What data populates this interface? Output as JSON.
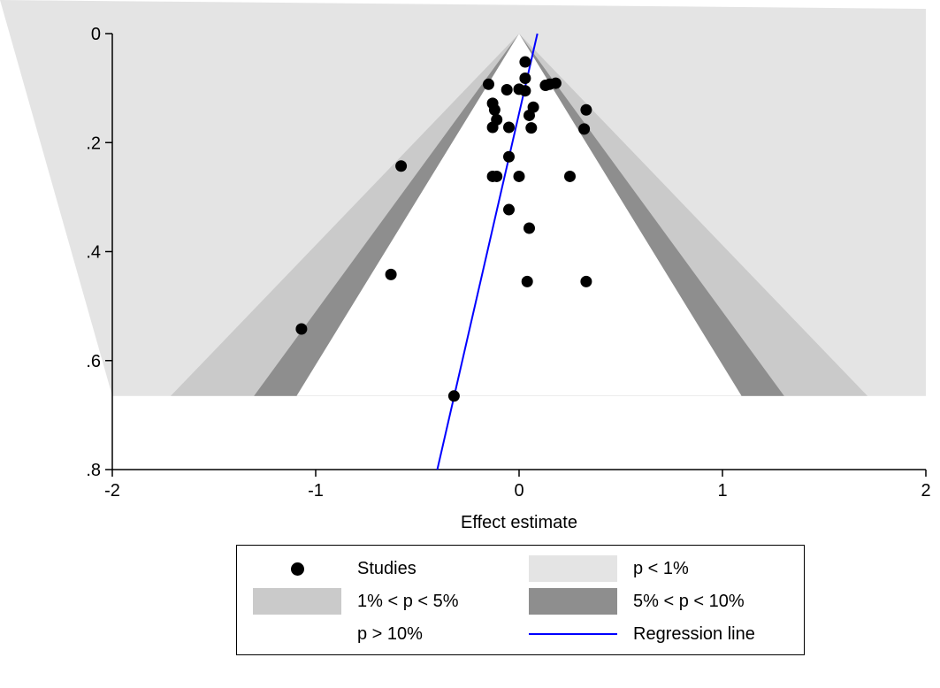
{
  "chart_data": {
    "type": "scatter",
    "subtype": "contour-enhanced funnel plot",
    "xlabel": "Effect estimate",
    "ylabel": "",
    "xlim": [
      -2,
      2
    ],
    "ylim": [
      0,
      0.8
    ],
    "y_reversed": true,
    "x_ticks": [
      "-2",
      "-1",
      "0",
      "1",
      "2"
    ],
    "y_ticks": [
      "0",
      ".2",
      ".4",
      ".6",
      ".8"
    ],
    "grid": false,
    "legend_position": "bottom",
    "contour_max_se": 0.665,
    "series": [
      {
        "name": "Studies",
        "kind": "points",
        "color": "#000000",
        "points": [
          {
            "x": 0.03,
            "y": 0.052
          },
          {
            "x": 0.03,
            "y": 0.082
          },
          {
            "x": -0.15,
            "y": 0.093
          },
          {
            "x": 0.15,
            "y": 0.093
          },
          {
            "x": 0.18,
            "y": 0.091
          },
          {
            "x": 0.13,
            "y": 0.095
          },
          {
            "x": -0.06,
            "y": 0.103
          },
          {
            "x": 0.0,
            "y": 0.102
          },
          {
            "x": 0.03,
            "y": 0.105
          },
          {
            "x": -0.13,
            "y": 0.128
          },
          {
            "x": -0.12,
            "y": 0.14
          },
          {
            "x": 0.07,
            "y": 0.135
          },
          {
            "x": 0.33,
            "y": 0.14
          },
          {
            "x": -0.11,
            "y": 0.158
          },
          {
            "x": 0.05,
            "y": 0.15
          },
          {
            "x": -0.13,
            "y": 0.172
          },
          {
            "x": -0.05,
            "y": 0.172
          },
          {
            "x": 0.06,
            "y": 0.173
          },
          {
            "x": 0.32,
            "y": 0.175
          },
          {
            "x": -0.05,
            "y": 0.226
          },
          {
            "x": -0.58,
            "y": 0.243
          },
          {
            "x": -0.13,
            "y": 0.262
          },
          {
            "x": -0.11,
            "y": 0.262
          },
          {
            "x": 0.0,
            "y": 0.262
          },
          {
            "x": 0.25,
            "y": 0.262
          },
          {
            "x": -0.05,
            "y": 0.323
          },
          {
            "x": 0.05,
            "y": 0.357
          },
          {
            "x": -0.63,
            "y": 0.442
          },
          {
            "x": 0.04,
            "y": 0.455
          },
          {
            "x": 0.33,
            "y": 0.455
          },
          {
            "x": -1.07,
            "y": 0.542
          },
          {
            "x": -0.32,
            "y": 0.665
          }
        ]
      },
      {
        "name": "Regression line",
        "kind": "line",
        "color": "#0000ff",
        "x_at_se0": 0.09,
        "slope_x_per_se": -0.615
      }
    ],
    "contours": [
      {
        "name": "p < 1%",
        "color": "#e4e4e4",
        "z": 2.576
      },
      {
        "name": "1% < p < 5%",
        "color": "#cacaca",
        "z": 1.96
      },
      {
        "name": "5% < p < 10%",
        "color": "#8e8e8e",
        "z": 1.645
      },
      {
        "name": "p > 10%",
        "color": "#ffffff",
        "z": 0
      }
    ]
  },
  "legend": {
    "studies": "Studies",
    "p1": "p < 1%",
    "p1_5": "1% < p < 5%",
    "p5_10": "5% < p < 10%",
    "p10": "p > 10%",
    "regression": "Regression line"
  },
  "colors": {
    "p1": "#e4e4e4",
    "p1_5": "#cacaca",
    "p5_10": "#8e8e8e",
    "regression": "#0000ff"
  }
}
